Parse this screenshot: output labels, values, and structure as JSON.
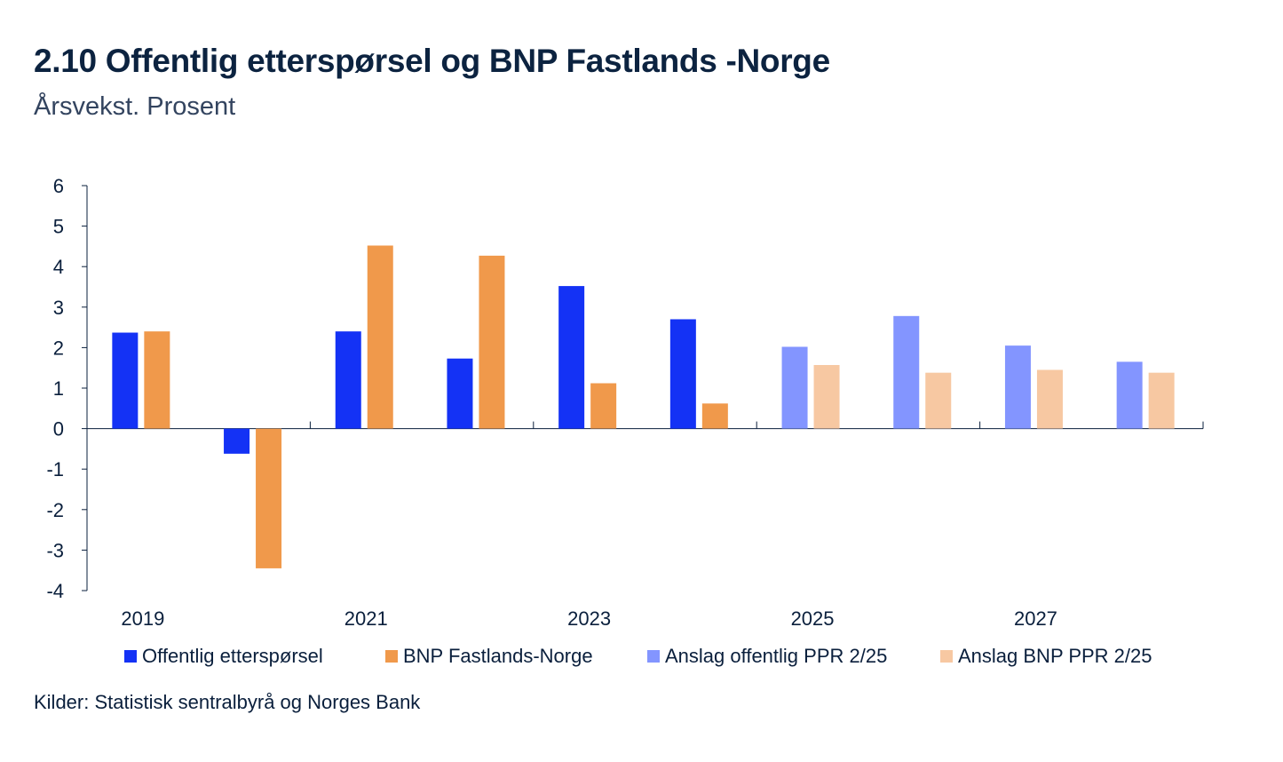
{
  "title": "2.10 Offentlig etterspørsel og BNP Fastlands -Norge",
  "subtitle": "Årsvekst. Prosent",
  "source": "Kilder: Statistisk sentralbyrå og Norges Bank",
  "chart_data": {
    "type": "bar",
    "categories": [
      "2019",
      "2020",
      "2021",
      "2022",
      "2023",
      "2024",
      "2025",
      "2026",
      "2027",
      "2028"
    ],
    "xtick_labels": [
      "2019",
      "2021",
      "2023",
      "2025",
      "2027"
    ],
    "ylim": [
      -4,
      6
    ],
    "yticks": [
      "6",
      "5",
      "4",
      "3",
      "2",
      "1",
      "0",
      "-1",
      "-2",
      "-3",
      "-4"
    ],
    "series": [
      {
        "name": "Offentlig etterspørsel",
        "color": "#1432f5",
        "values": [
          2.37,
          -0.62,
          2.4,
          1.73,
          3.52,
          2.7,
          null,
          null,
          null,
          null
        ]
      },
      {
        "name": "BNP Fastlands-Norge",
        "color": "#f0994b",
        "values": [
          2.4,
          -3.45,
          4.52,
          4.27,
          1.12,
          0.62,
          null,
          null,
          null,
          null
        ]
      },
      {
        "name": "Anslag offentlig PPR 2/25",
        "color": "#8395ff",
        "values": [
          null,
          null,
          null,
          null,
          null,
          null,
          2.02,
          2.78,
          2.05,
          1.65
        ]
      },
      {
        "name": "Anslag BNP PPR 2/25",
        "color": "#f7c8a2",
        "values": [
          null,
          null,
          null,
          null,
          null,
          null,
          1.57,
          1.38,
          1.45,
          1.38
        ]
      }
    ]
  }
}
